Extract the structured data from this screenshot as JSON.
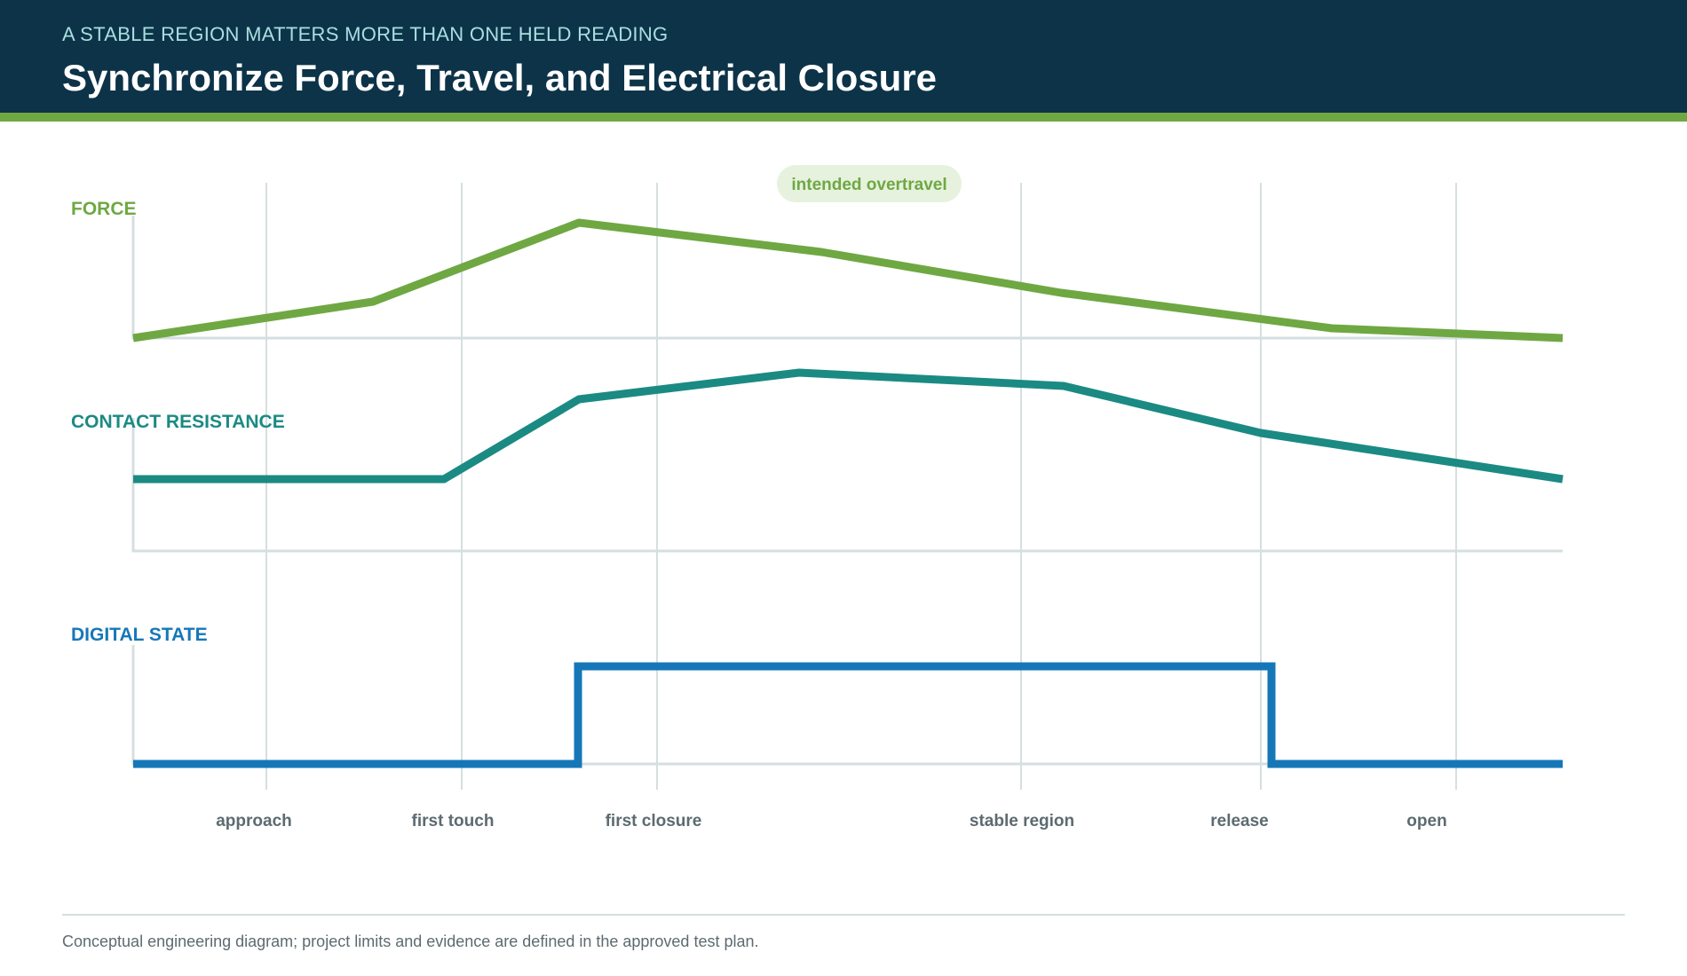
{
  "header": {
    "kicker": "A STABLE REGION MATTERS MORE THAN ONE HELD READING",
    "title": "Synchronize Force, Travel, and Electrical Closure"
  },
  "colors": {
    "header_bg": "#0d3349",
    "accent": "#6fa843",
    "force": "#6fa843",
    "contact_resistance": "#1b8a83",
    "digital_state": "#1677b8",
    "gridline": "#d5dfe0",
    "phase_label": "#5d6b70"
  },
  "diagram": {
    "annotation": "intended overtravel",
    "tracks": [
      {
        "label": "FORCE"
      },
      {
        "label": "CONTACT RESISTANCE"
      },
      {
        "label": "DIGITAL STATE"
      }
    ],
    "phases": [
      {
        "label": "approach"
      },
      {
        "label": "first touch"
      },
      {
        "label": "first closure"
      },
      {
        "label": "stable region"
      },
      {
        "label": "release"
      },
      {
        "label": "open"
      }
    ]
  },
  "footer": {
    "note": "Conceptual engineering diagram; project limits and evidence are defined in the approved test plan."
  }
}
